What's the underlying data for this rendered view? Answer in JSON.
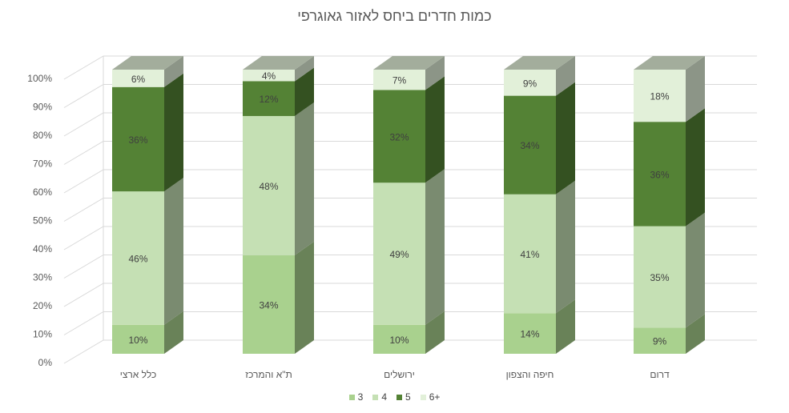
{
  "chart_data": {
    "type": "bar",
    "stacked": "percent",
    "three_d": true,
    "title": "כמות חדרים ביחס לאזור גאוגרפי",
    "categories": [
      "כלל ארצי",
      "ת\"א והמרכז",
      "ירושלים",
      "חיפה והצפון",
      "דרום"
    ],
    "series": [
      {
        "name": "3",
        "values": [
          10,
          34,
          10,
          14,
          9
        ],
        "color": "#a9d18e"
      },
      {
        "name": "4",
        "values": [
          46,
          48,
          49,
          41,
          35
        ],
        "color": "#c5e0b4"
      },
      {
        "name": "5",
        "values": [
          36,
          12,
          32,
          34,
          36
        ],
        "color": "#548235"
      },
      {
        "name": "6+",
        "values": [
          6,
          4,
          7,
          9,
          18
        ],
        "color": "#e2f0d9"
      }
    ],
    "data_labels": [
      [
        "10%",
        "34%",
        "10%",
        "14%",
        "9%"
      ],
      [
        "46%",
        "48%",
        "49%",
        "41%",
        "35%"
      ],
      [
        "36%",
        "12%",
        "32%",
        "34%",
        "36%"
      ],
      [
        "6%",
        "4%",
        "7%",
        "9%",
        "18%"
      ]
    ],
    "y_ticks": [
      "0%",
      "10%",
      "20%",
      "30%",
      "40%",
      "50%",
      "60%",
      "70%",
      "80%",
      "90%",
      "100%"
    ],
    "ylim": [
      0,
      100
    ],
    "grid": true,
    "legend_position": "bottom"
  }
}
